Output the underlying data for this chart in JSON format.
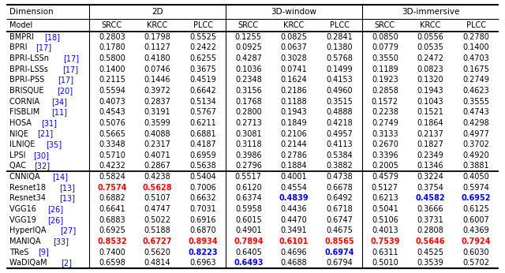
{
  "rows_traditional": [
    [
      "BMPRI",
      "18",
      "0.2803",
      "0.1798",
      "0.5525",
      "0.1255",
      "0.0825",
      "0.2841",
      "0.0850",
      "0.0556",
      "0.2780"
    ],
    [
      "BPRI",
      "17",
      "0.1780",
      "0.1127",
      "0.2422",
      "0.0925",
      "0.0637",
      "0.1380",
      "0.0779",
      "0.0535",
      "0.1400"
    ],
    [
      "BPRI-LSSn",
      "17",
      "0.5800",
      "0.4180",
      "0.6255",
      "0.4287",
      "0.3028",
      "0.5768",
      "0.3550",
      "0.2472",
      "0.4703"
    ],
    [
      "BPRI-LSSs",
      "17",
      "0.1400",
      "0.0746",
      "0.3675",
      "0.1036",
      "0.0741",
      "0.1499",
      "0.1189",
      "0.0823",
      "0.1675"
    ],
    [
      "BPRI-PSS",
      "17",
      "0.2115",
      "0.1446",
      "0.4519",
      "0.2348",
      "0.1624",
      "0.4153",
      "0.1923",
      "0.1320",
      "0.2749"
    ],
    [
      "BRISQUE",
      "20",
      "0.5594",
      "0.3972",
      "0.6642",
      "0.3156",
      "0.2186",
      "0.4960",
      "0.2858",
      "0.1943",
      "0.4623"
    ],
    [
      "CORNIA",
      "34",
      "0.4073",
      "0.2837",
      "0.5134",
      "0.1768",
      "0.1188",
      "0.3515",
      "0.1572",
      "0.1043",
      "0.3555"
    ],
    [
      "FISBLIM",
      "11",
      "0.4543",
      "0.3191",
      "0.5767",
      "0.2800",
      "0.1943",
      "0.4888",
      "0.2238",
      "0.1521",
      "0.4743"
    ],
    [
      "HOSA",
      "31",
      "0.5076",
      "0.3599",
      "0.6211",
      "0.2713",
      "0.1849",
      "0.4218",
      "0.2749",
      "0.1864",
      "0.4298"
    ],
    [
      "NIQE",
      "21",
      "0.5665",
      "0.4088",
      "0.6881",
      "0.3081",
      "0.2106",
      "0.4957",
      "0.3133",
      "0.2137",
      "0.4977"
    ],
    [
      "ILNIQE",
      "35",
      "0.3348",
      "0.2317",
      "0.4187",
      "0.3118",
      "0.2144",
      "0.4113",
      "0.2670",
      "0.1827",
      "0.3702"
    ],
    [
      "LPSI",
      "30",
      "0.5710",
      "0.4071",
      "0.6959",
      "0.3986",
      "0.2786",
      "0.5384",
      "0.3396",
      "0.2349",
      "0.4920"
    ],
    [
      "QAC",
      "32",
      "0.4232",
      "0.2867",
      "0.5638",
      "0.2796",
      "0.1884",
      "0.3882",
      "0.2005",
      "0.1346",
      "0.3881"
    ]
  ],
  "rows_dl": [
    [
      "CNNIQA",
      "14",
      "0.5824",
      "0.4238",
      "0.5404",
      "0.5517",
      "0.4001",
      "0.4738",
      "0.4579",
      "0.3224",
      "0.4050"
    ],
    [
      "Resnet18",
      "13",
      "0.7574",
      "0.5628",
      "0.7006",
      "0.6120",
      "0.4554",
      "0.6678",
      "0.5127",
      "0.3754",
      "0.5974"
    ],
    [
      "Resnet34",
      "13",
      "0.6882",
      "0.5107",
      "0.6632",
      "0.6374",
      "0.4839",
      "0.6492",
      "0.6213",
      "0.4582",
      "0.6952"
    ],
    [
      "VGG16",
      "26",
      "0.6641",
      "0.4747",
      "0.7031",
      "0.5958",
      "0.4436",
      "0.6718",
      "0.5041",
      "0.3666",
      "0.6125"
    ],
    [
      "VGG19",
      "26",
      "0.6883",
      "0.5022",
      "0.6916",
      "0.6015",
      "0.4470",
      "0.6747",
      "0.5106",
      "0.3731",
      "0.6007"
    ],
    [
      "HyperIQA",
      "27",
      "0.6925",
      "0.5188",
      "0.6870",
      "0.4901",
      "0.3491",
      "0.4675",
      "0.4013",
      "0.2808",
      "0.4369"
    ],
    [
      "MANIQA",
      "33",
      "0.8532",
      "0.6727",
      "0.8934",
      "0.7894",
      "0.6101",
      "0.8565",
      "0.7539",
      "0.5646",
      "0.7924"
    ],
    [
      "TReS",
      "9",
      "0.7400",
      "0.5620",
      "0.8223",
      "0.6405",
      "0.4696",
      "0.6974",
      "0.6311",
      "0.4525",
      "0.6030"
    ],
    [
      "WaDIQaM",
      "2",
      "0.6598",
      "0.4814",
      "0.6963",
      "0.6493",
      "0.4688",
      "0.6794",
      "0.5010",
      "0.3539",
      "0.5702"
    ]
  ],
  "highlight_red": [
    [
      "Resnet18",
      2
    ],
    [
      "Resnet18",
      3
    ],
    [
      "MANIQA",
      2
    ],
    [
      "MANIQA",
      3
    ],
    [
      "MANIQA",
      4
    ],
    [
      "MANIQA",
      5
    ],
    [
      "MANIQA",
      6
    ],
    [
      "MANIQA",
      7
    ],
    [
      "MANIQA",
      8
    ],
    [
      "MANIQA",
      9
    ],
    [
      "MANIQA",
      10
    ]
  ],
  "highlight_blue": [
    [
      "Resnet34",
      6
    ],
    [
      "Resnet34",
      9
    ],
    [
      "Resnet34",
      10
    ],
    [
      "TReS",
      4
    ],
    [
      "TReS",
      7
    ],
    [
      "WaDIQaM",
      5
    ]
  ],
  "fig_width": 6.4,
  "fig_height": 3.46,
  "dpi": 100,
  "font_size": 7.0,
  "bg_color": "#ffffff",
  "text_color": "#000000",
  "red_color": "#ff0000",
  "blue_color": "#0000ff"
}
